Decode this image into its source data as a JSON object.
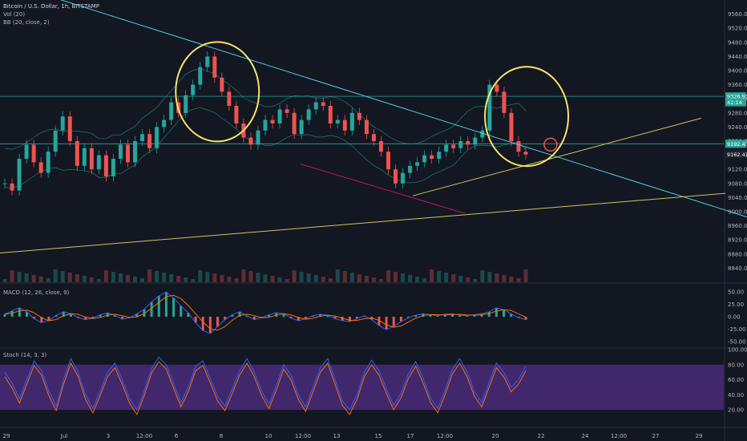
{
  "chart_data": {
    "type": "line",
    "header": {
      "symbol": "Bitcoin / U.S. Dollar, 1h, BITSTAMP",
      "vol": "Vol (20)",
      "bb": "BB (20, close, 2)"
    },
    "x_labels": [
      "29",
      "Jul",
      "3",
      "12:00",
      "6",
      "8",
      "10",
      "12:00",
      "13",
      "15",
      "17",
      "12:00",
      "20",
      "22",
      "24",
      "12:00",
      "27",
      "29"
    ],
    "price_axis": {
      "ylim": [
        8800,
        9600
      ],
      "ticks": [
        "9560.00",
        "9520.00",
        "9480.00",
        "9440.00",
        "9400.00",
        "9360.00",
        "9320.00",
        "9280.00",
        "9240.00",
        "9200.00",
        "9160.00",
        "9120.00",
        "9080.00",
        "9040.00",
        "9000.00",
        "8960.00",
        "8920.00",
        "8880.00",
        "8840.00"
      ],
      "tags": [
        {
          "value": 9326.93,
          "text": "9326.93",
          "color": "#26a69a"
        },
        {
          "value": 9310,
          "text": "41:14",
          "color": "#26a69a"
        },
        {
          "value": 9192.43,
          "text": "9192.43",
          "color": "#26a69a"
        },
        {
          "value": 9162.43,
          "text": "9162.43",
          "color": "#1e222d"
        }
      ],
      "hlines": [
        9326.93,
        9192.43
      ]
    },
    "series": [
      {
        "name": "Bitcoin / U.S. Dollar",
        "color_up": "#26a69a",
        "color_down": "#ef5350",
        "values": [
          9080,
          9060,
          9150,
          9190,
          9140,
          9110,
          9170,
          9230,
          9270,
          9200,
          9130,
          9180,
          9120,
          9160,
          9100,
          9150,
          9190,
          9140,
          9200,
          9220,
          9180,
          9240,
          9260,
          9310,
          9280,
          9330,
          9360,
          9410,
          9440,
          9380,
          9340,
          9300,
          9250,
          9210,
          9190,
          9230,
          9260,
          9250,
          9290,
          9280,
          9220,
          9260,
          9290,
          9310,
          9300,
          9250,
          9260,
          9230,
          9280,
          9260,
          9220,
          9200,
          9170,
          9120,
          9080,
          9110,
          9130,
          9140,
          9160,
          9150,
          9170,
          9190,
          9180,
          9200,
          9190,
          9210,
          9230,
          9360,
          9340,
          9280,
          9200,
          9170,
          9162
        ]
      }
    ],
    "bollinger_color": "#26a69a",
    "trendlines": [
      {
        "color": "#4dd0e1",
        "from": [
          0,
          9655
        ],
        "to": [
          932,
          8985
        ]
      },
      {
        "color": "#c8c85a",
        "from": [
          0,
          8883
        ],
        "to": [
          905,
          9052
        ]
      },
      {
        "color": "#c8c85a",
        "from": [
          515,
          9045
        ],
        "to": [
          875,
          9265
        ]
      },
      {
        "color": "#c2185b",
        "from": [
          375,
          9135
        ],
        "to": [
          580,
          8995
        ]
      }
    ],
    "annotations": [
      {
        "shape": "ellipse",
        "color": "#f5e36b",
        "x_frac": 0.291,
        "price": 9340
      },
      {
        "shape": "ellipse",
        "color": "#f5e36b",
        "x_frac": 0.705,
        "price": 9270
      },
      {
        "shape": "circle",
        "color": "#ef5350",
        "x_frac": 0.737,
        "price": 9190
      }
    ],
    "macd": {
      "title": "MACD (12, 26, close, 9)",
      "ticks": [
        "50.00",
        "25.00",
        "0.00",
        "-25.00",
        "-50.00"
      ],
      "ylim": [
        -60,
        60
      ],
      "values": [
        5,
        12,
        18,
        10,
        -4,
        -12,
        -8,
        3,
        10,
        6,
        -2,
        -6,
        -3,
        4,
        8,
        3,
        -5,
        -2,
        6,
        15,
        30,
        42,
        50,
        38,
        22,
        8,
        -12,
        -28,
        -34,
        -20,
        -6,
        4,
        10,
        2,
        -6,
        -2,
        4,
        8,
        6,
        -3,
        -8,
        -4,
        2,
        5,
        3,
        -4,
        -8,
        -10,
        -4,
        2,
        -6,
        -18,
        -26,
        -20,
        -10,
        -2,
        3,
        6,
        4,
        2,
        5,
        6,
        3,
        2,
        4,
        6,
        10,
        18,
        14,
        6,
        -2,
        -6
      ]
    },
    "stoch": {
      "title": "Stoch (14, 3, 3)",
      "ticks": [
        "100.00",
        "80.00",
        "60.00",
        "40.00",
        "20.00"
      ],
      "band": [
        20,
        80
      ],
      "band_color": "#4a2b7a",
      "values": [
        70,
        55,
        35,
        60,
        85,
        72,
        45,
        25,
        60,
        88,
        70,
        40,
        22,
        45,
        70,
        82,
        60,
        35,
        20,
        45,
        75,
        90,
        80,
        55,
        30,
        50,
        78,
        85,
        62,
        38,
        25,
        48,
        72,
        88,
        70,
        45,
        28,
        52,
        80,
        66,
        40,
        24,
        50,
        76,
        88,
        60,
        32,
        20,
        40,
        70,
        86,
        72,
        48,
        26,
        42,
        68,
        84,
        62,
        36,
        22,
        46,
        74,
        88,
        70,
        44,
        30,
        56,
        82,
        70,
        50,
        60,
        78
      ]
    },
    "bottom_axis": [
      "29",
      "Jul",
      "3",
      "12:00",
      "6",
      "8",
      "10",
      "12:00",
      "13",
      "15",
      "17",
      "12:00",
      "20",
      "22",
      "24",
      "12:00",
      "27",
      "29"
    ]
  }
}
